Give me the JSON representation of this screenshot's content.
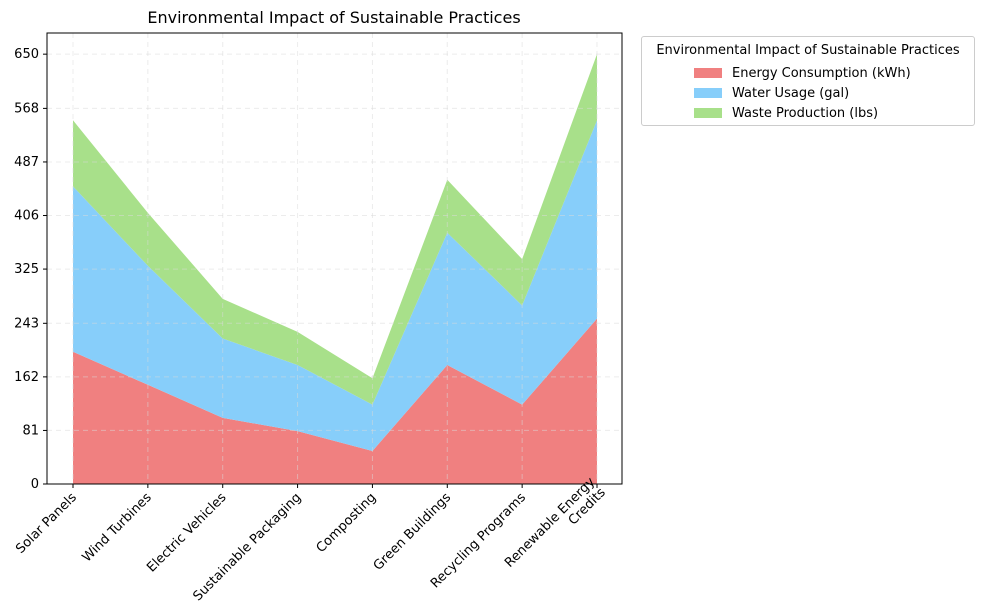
{
  "chart_data": {
    "type": "area",
    "title": "Environmental Impact of Sustainable Practices",
    "xlabel": "",
    "ylabel": "",
    "categories": [
      "Solar Panels",
      "Wind Turbines",
      "Electric Vehicles",
      "Sustainable Packaging",
      "Composting",
      "Green Buildings",
      "Recycling Programs",
      "Renewable Energy Credits"
    ],
    "category_lines": [
      [
        "Solar Panels"
      ],
      [
        "Wind Turbines"
      ],
      [
        "Electric Vehicles"
      ],
      [
        "Sustainable Packaging"
      ],
      [
        "Composting"
      ],
      [
        "Green Buildings"
      ],
      [
        "Recycling Programs"
      ],
      [
        "Renewable Energy",
        "Credits"
      ]
    ],
    "yticks": [
      0,
      81,
      162,
      243,
      325,
      406,
      487,
      568,
      650
    ],
    "ylim": [
      0,
      682
    ],
    "stacked": true,
    "grid": true,
    "legend": {
      "title": "Environmental Impact of Sustainable Practices",
      "placement": "outside-upper-right"
    },
    "series": [
      {
        "name": "Energy Consumption (kWh)",
        "color": "#F08080",
        "values": [
          200,
          150,
          100,
          80,
          50,
          180,
          120,
          250
        ]
      },
      {
        "name": "Water Usage (gal)",
        "color": "#87CEFA",
        "values": [
          250,
          180,
          120,
          100,
          70,
          200,
          150,
          300
        ]
      },
      {
        "name": "Waste Production (lbs)",
        "color": "#A8E08A",
        "values": [
          100,
          80,
          60,
          50,
          40,
          80,
          70,
          100
        ]
      }
    ]
  }
}
